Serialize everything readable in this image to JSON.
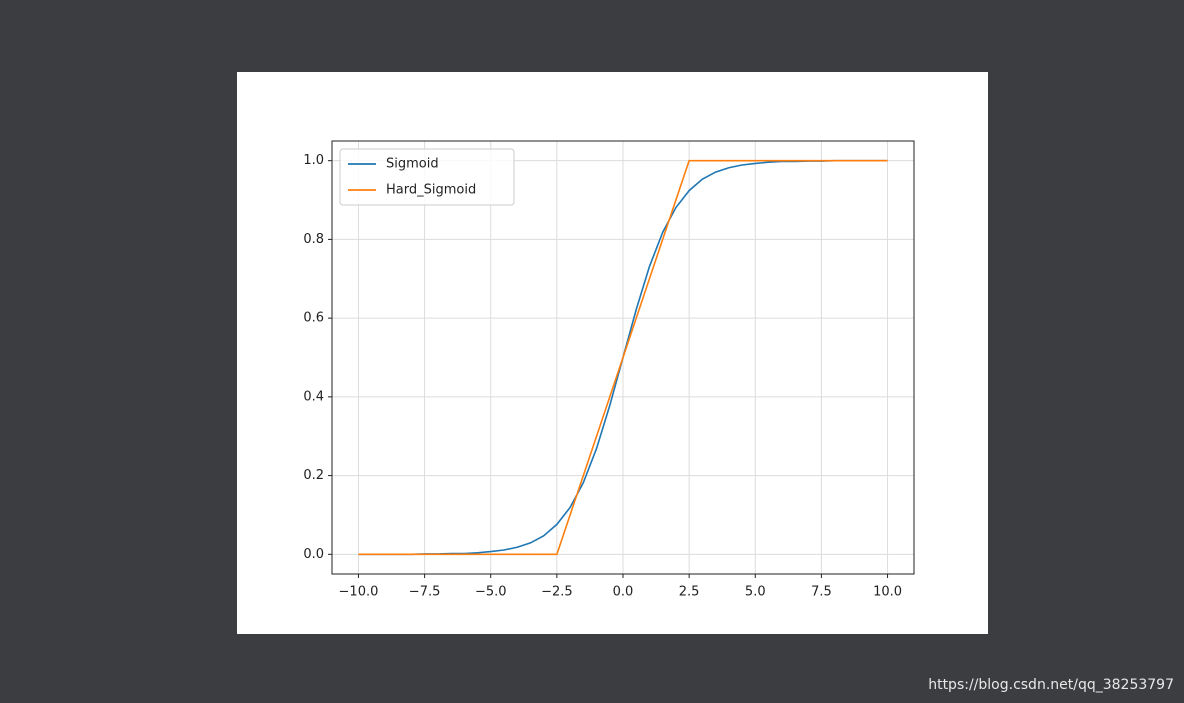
{
  "chart_data": {
    "type": "line",
    "x": [
      -10,
      -9.5,
      -9,
      -8.5,
      -8,
      -7.5,
      -7,
      -6.5,
      -6,
      -5.5,
      -5,
      -4.5,
      -4,
      -3.5,
      -3,
      -2.5,
      -2,
      -1.5,
      -1,
      -0.5,
      0,
      0.5,
      1,
      1.5,
      2,
      2.5,
      3,
      3.5,
      4,
      4.5,
      5,
      5.5,
      6,
      6.5,
      7,
      7.5,
      8,
      8.5,
      9,
      9.5,
      10
    ],
    "series": [
      {
        "name": "Sigmoid",
        "color": "#1f77b4",
        "values": [
          0.0,
          0.0,
          0.0,
          0.0,
          0.0,
          0.001,
          0.001,
          0.002,
          0.002,
          0.004,
          0.007,
          0.011,
          0.018,
          0.029,
          0.047,
          0.076,
          0.119,
          0.182,
          0.269,
          0.378,
          0.5,
          0.622,
          0.731,
          0.818,
          0.881,
          0.924,
          0.953,
          0.971,
          0.982,
          0.989,
          0.993,
          0.996,
          0.998,
          0.998,
          0.999,
          0.999,
          1,
          1,
          1,
          1,
          1
        ]
      },
      {
        "name": "Hard_Sigmoid",
        "color": "#ff7f0e",
        "values": [
          0,
          0,
          0,
          0,
          0,
          0,
          0,
          0,
          0,
          0,
          0,
          0,
          0,
          0,
          0,
          0,
          0.1,
          0.2,
          0.3,
          0.4,
          0.5,
          0.6,
          0.7,
          0.8,
          0.9,
          1,
          1,
          1,
          1,
          1,
          1,
          1,
          1,
          1,
          1,
          1,
          1,
          1,
          1,
          1,
          1
        ]
      }
    ],
    "xlim": [
      -11,
      11
    ],
    "ylim": [
      -0.05,
      1.05
    ],
    "xticks": [
      {
        "value": -10,
        "label": "−10.0"
      },
      {
        "value": -7.5,
        "label": "−7.5"
      },
      {
        "value": -5,
        "label": "−5.0"
      },
      {
        "value": -2.5,
        "label": "−2.5"
      },
      {
        "value": 0,
        "label": "0.0"
      },
      2.5,
      {
        "value": 5,
        "label": "5.0"
      },
      7.5,
      {
        "value": 10,
        "label": "10.0"
      }
    ],
    "yticks": [
      {
        "value": 0,
        "label": "0.0"
      },
      0.2,
      0.4,
      0.6,
      0.8,
      {
        "value": 1,
        "label": "1.0"
      }
    ],
    "grid": true,
    "legend": "upper-left"
  },
  "watermark": "https://blog.csdn.net/qq_38253797"
}
